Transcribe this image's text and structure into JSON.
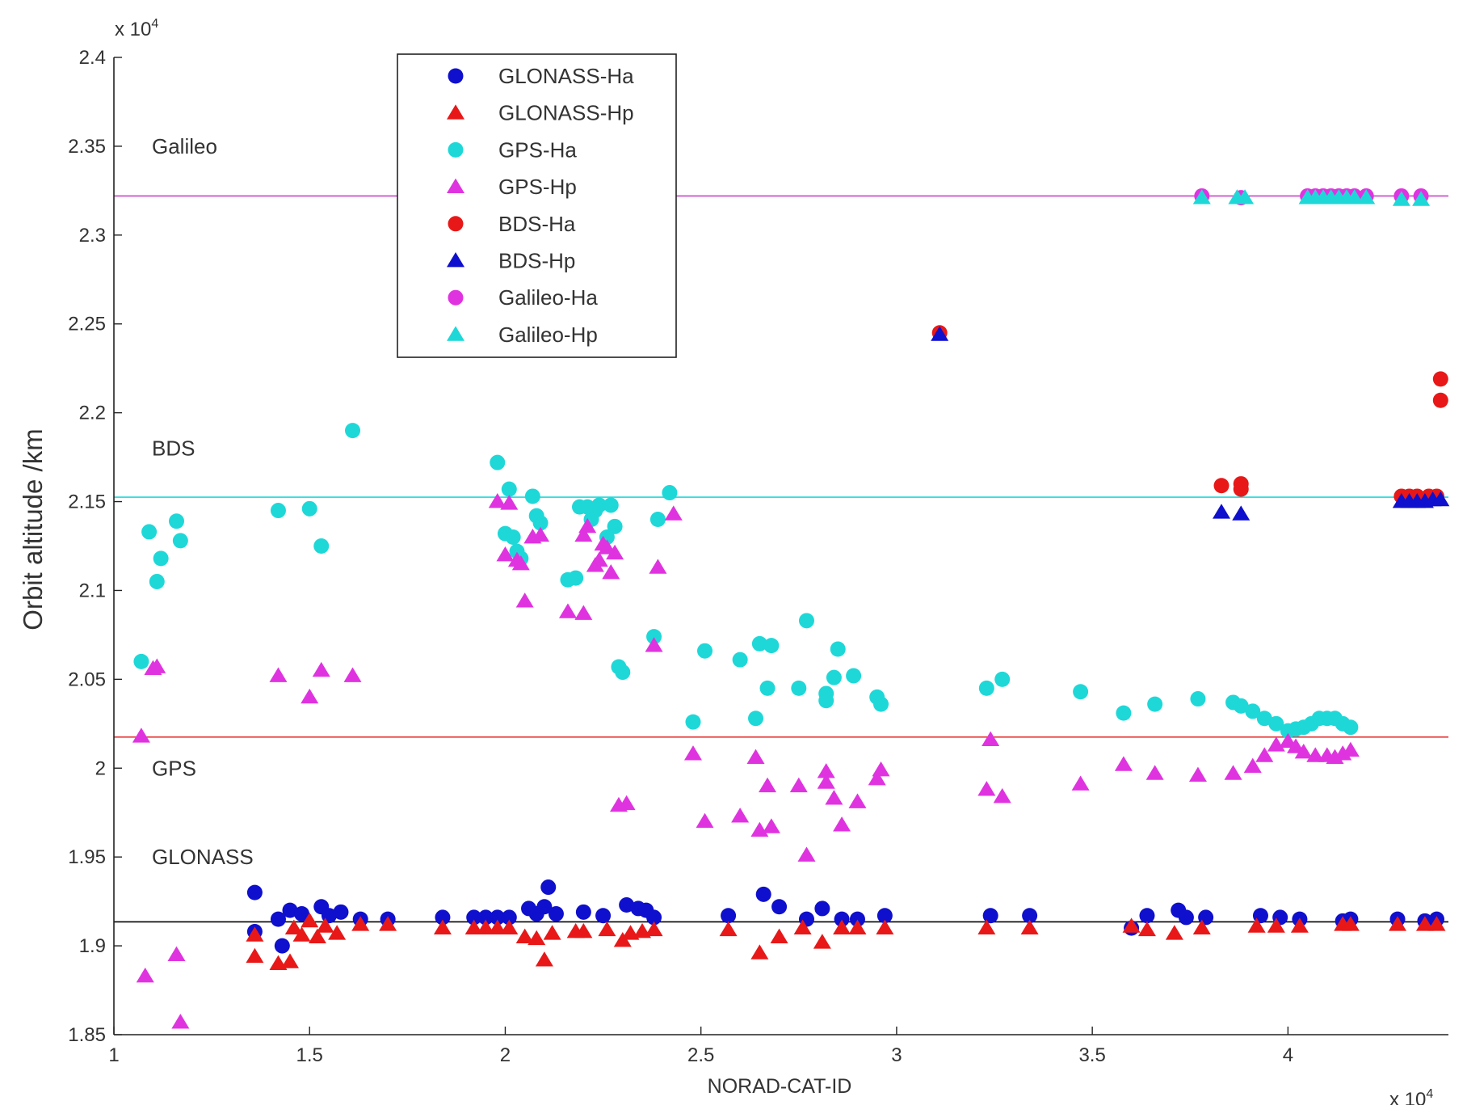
{
  "chart_data": {
    "type": "scatter",
    "title": "",
    "xlabel": "NORAD-CAT-ID",
    "ylabel": "Orbit altitude /km",
    "x_multiplier_label": "x 10",
    "x_multiplier_exp": "4",
    "y_multiplier_label": "x 10",
    "y_multiplier_exp": "4",
    "xlim": [
      1,
      4.41
    ],
    "ylim": [
      1.85,
      2.4
    ],
    "xticks": [
      1,
      1.5,
      2,
      2.5,
      3,
      3.5,
      4
    ],
    "xtick_labels": [
      "1",
      "1.5",
      "2",
      "2.5",
      "3",
      "3.5",
      "4"
    ],
    "yticks": [
      1.85,
      1.9,
      1.95,
      2.0,
      2.05,
      2.1,
      2.15,
      2.2,
      2.25,
      2.3,
      2.35,
      2.4
    ],
    "ytick_labels": [
      "1.85",
      "1.9",
      "1.95",
      "2",
      "2.05",
      "2.1",
      "2.15",
      "2.2",
      "2.25",
      "2.3",
      "2.35",
      "2.4"
    ],
    "grid": false,
    "legend_position": "top-center",
    "reference_lines": [
      {
        "name": "Galileo",
        "y": 2.322,
        "color": "#c845c8"
      },
      {
        "name": "BDS",
        "y": 2.1525,
        "color": "#1ed8d8"
      },
      {
        "name": "GPS",
        "y": 2.0175,
        "color": "#e83a3a"
      },
      {
        "name": "GLONASS",
        "y": 1.9135,
        "color": "#000000"
      }
    ],
    "series": [
      {
        "name": "GLONASS-Ha",
        "marker": "circle",
        "color": "#0f0fce",
        "points": [
          [
            1.36,
            1.93
          ],
          [
            1.36,
            1.908
          ],
          [
            1.42,
            1.915
          ],
          [
            1.43,
            1.9
          ],
          [
            1.45,
            1.92
          ],
          [
            1.48,
            1.918
          ],
          [
            1.53,
            1.922
          ],
          [
            1.55,
            1.917
          ],
          [
            1.58,
            1.919
          ],
          [
            1.63,
            1.915
          ],
          [
            1.7,
            1.915
          ],
          [
            1.84,
            1.916
          ],
          [
            1.92,
            1.916
          ],
          [
            1.95,
            1.916
          ],
          [
            1.98,
            1.916
          ],
          [
            2.01,
            1.916
          ],
          [
            2.06,
            1.921
          ],
          [
            2.08,
            1.918
          ],
          [
            2.1,
            1.922
          ],
          [
            2.11,
            1.933
          ],
          [
            2.13,
            1.918
          ],
          [
            2.2,
            1.919
          ],
          [
            2.25,
            1.917
          ],
          [
            2.31,
            1.923
          ],
          [
            2.34,
            1.921
          ],
          [
            2.36,
            1.92
          ],
          [
            2.38,
            1.916
          ],
          [
            2.57,
            1.917
          ],
          [
            2.66,
            1.929
          ],
          [
            2.7,
            1.922
          ],
          [
            2.77,
            1.915
          ],
          [
            2.81,
            1.921
          ],
          [
            2.86,
            1.915
          ],
          [
            2.9,
            1.915
          ],
          [
            2.97,
            1.917
          ],
          [
            3.24,
            1.917
          ],
          [
            3.34,
            1.917
          ],
          [
            3.6,
            1.91
          ],
          [
            3.64,
            1.917
          ],
          [
            3.72,
            1.92
          ],
          [
            3.74,
            1.916
          ],
          [
            3.79,
            1.916
          ],
          [
            3.93,
            1.917
          ],
          [
            3.98,
            1.916
          ],
          [
            4.03,
            1.915
          ],
          [
            4.14,
            1.914
          ],
          [
            4.16,
            1.915
          ],
          [
            4.28,
            1.915
          ],
          [
            4.35,
            1.914
          ],
          [
            4.38,
            1.915
          ]
        ]
      },
      {
        "name": "GLONASS-Hp",
        "marker": "triangle",
        "color": "#e81818",
        "points": [
          [
            1.36,
            1.894
          ],
          [
            1.36,
            1.906
          ],
          [
            1.42,
            1.89
          ],
          [
            1.45,
            1.891
          ],
          [
            1.46,
            1.91
          ],
          [
            1.48,
            1.906
          ],
          [
            1.5,
            1.914
          ],
          [
            1.52,
            1.905
          ],
          [
            1.54,
            1.911
          ],
          [
            1.57,
            1.907
          ],
          [
            1.63,
            1.912
          ],
          [
            1.7,
            1.912
          ],
          [
            1.84,
            1.91
          ],
          [
            1.92,
            1.91
          ],
          [
            1.95,
            1.91
          ],
          [
            1.98,
            1.91
          ],
          [
            2.01,
            1.91
          ],
          [
            2.05,
            1.905
          ],
          [
            2.08,
            1.904
          ],
          [
            2.1,
            1.892
          ],
          [
            2.12,
            1.907
          ],
          [
            2.18,
            1.908
          ],
          [
            2.2,
            1.908
          ],
          [
            2.26,
            1.909
          ],
          [
            2.3,
            1.903
          ],
          [
            2.32,
            1.907
          ],
          [
            2.35,
            1.908
          ],
          [
            2.38,
            1.909
          ],
          [
            2.57,
            1.909
          ],
          [
            2.65,
            1.896
          ],
          [
            2.7,
            1.905
          ],
          [
            2.76,
            1.91
          ],
          [
            2.81,
            1.902
          ],
          [
            2.86,
            1.91
          ],
          [
            2.9,
            1.91
          ],
          [
            2.97,
            1.91
          ],
          [
            3.23,
            1.91
          ],
          [
            3.34,
            1.91
          ],
          [
            3.6,
            1.911
          ],
          [
            3.64,
            1.909
          ],
          [
            3.71,
            1.907
          ],
          [
            3.78,
            1.91
          ],
          [
            3.92,
            1.911
          ],
          [
            3.97,
            1.911
          ],
          [
            4.03,
            1.911
          ],
          [
            4.14,
            1.912
          ],
          [
            4.16,
            1.912
          ],
          [
            4.28,
            1.912
          ],
          [
            4.35,
            1.912
          ],
          [
            4.38,
            1.912
          ]
        ]
      },
      {
        "name": "GPS-Ha",
        "marker": "circle",
        "color": "#1ed8d8",
        "points": [
          [
            1.07,
            2.06
          ],
          [
            1.09,
            2.133
          ],
          [
            1.11,
            2.105
          ],
          [
            1.12,
            2.118
          ],
          [
            1.16,
            2.139
          ],
          [
            1.17,
            2.128
          ],
          [
            1.42,
            2.145
          ],
          [
            1.5,
            2.146
          ],
          [
            1.53,
            2.125
          ],
          [
            1.61,
            2.19
          ],
          [
            1.98,
            2.172
          ],
          [
            2.0,
            2.132
          ],
          [
            2.01,
            2.157
          ],
          [
            2.02,
            2.13
          ],
          [
            2.03,
            2.122
          ],
          [
            2.04,
            2.118
          ],
          [
            2.07,
            2.153
          ],
          [
            2.08,
            2.142
          ],
          [
            2.09,
            2.138
          ],
          [
            2.16,
            2.106
          ],
          [
            2.18,
            2.107
          ],
          [
            2.19,
            2.147
          ],
          [
            2.21,
            2.147
          ],
          [
            2.22,
            2.14
          ],
          [
            2.23,
            2.145
          ],
          [
            2.24,
            2.148
          ],
          [
            2.26,
            2.13
          ],
          [
            2.27,
            2.148
          ],
          [
            2.28,
            2.136
          ],
          [
            2.29,
            2.057
          ],
          [
            2.3,
            2.054
          ],
          [
            2.38,
            2.074
          ],
          [
            2.39,
            2.14
          ],
          [
            2.42,
            2.155
          ],
          [
            2.48,
            2.026
          ],
          [
            2.51,
            2.066
          ],
          [
            2.6,
            2.061
          ],
          [
            2.64,
            2.028
          ],
          [
            2.65,
            2.07
          ],
          [
            2.67,
            2.045
          ],
          [
            2.68,
            2.069
          ],
          [
            2.75,
            2.045
          ],
          [
            2.77,
            2.083
          ],
          [
            2.82,
            2.038
          ],
          [
            2.82,
            2.042
          ],
          [
            2.84,
            2.051
          ],
          [
            2.85,
            2.067
          ],
          [
            2.89,
            2.052
          ],
          [
            2.95,
            2.04
          ],
          [
            2.96,
            2.036
          ],
          [
            3.23,
            2.045
          ],
          [
            3.27,
            2.05
          ],
          [
            3.47,
            2.043
          ],
          [
            3.58,
            2.031
          ],
          [
            3.66,
            2.036
          ],
          [
            3.77,
            2.039
          ],
          [
            3.86,
            2.037
          ],
          [
            3.88,
            2.035
          ],
          [
            3.91,
            2.032
          ],
          [
            3.94,
            2.028
          ],
          [
            3.97,
            2.025
          ],
          [
            4.0,
            2.021
          ],
          [
            4.02,
            2.022
          ],
          [
            4.04,
            2.023
          ],
          [
            4.06,
            2.025
          ],
          [
            4.08,
            2.028
          ],
          [
            4.1,
            2.028
          ],
          [
            4.12,
            2.028
          ],
          [
            4.14,
            2.025
          ],
          [
            4.16,
            2.023
          ]
        ]
      },
      {
        "name": "GPS-Hp",
        "marker": "triangle",
        "color": "#e033e0",
        "points": [
          [
            1.07,
            2.018
          ],
          [
            1.1,
            2.056
          ],
          [
            1.11,
            2.057
          ],
          [
            1.08,
            1.883
          ],
          [
            1.16,
            1.895
          ],
          [
            1.17,
            1.857
          ],
          [
            1.42,
            2.052
          ],
          [
            1.5,
            2.04
          ],
          [
            1.53,
            2.055
          ],
          [
            1.61,
            2.052
          ],
          [
            1.98,
            2.15
          ],
          [
            2.0,
            2.12
          ],
          [
            2.01,
            2.149
          ],
          [
            2.03,
            2.117
          ],
          [
            2.04,
            2.115
          ],
          [
            2.05,
            2.094
          ],
          [
            2.07,
            2.13
          ],
          [
            2.09,
            2.131
          ],
          [
            2.16,
            2.088
          ],
          [
            2.2,
            2.087
          ],
          [
            2.2,
            2.131
          ],
          [
            2.21,
            2.136
          ],
          [
            2.23,
            2.114
          ],
          [
            2.24,
            2.117
          ],
          [
            2.25,
            2.126
          ],
          [
            2.26,
            2.124
          ],
          [
            2.27,
            2.11
          ],
          [
            2.28,
            2.121
          ],
          [
            2.29,
            1.979
          ],
          [
            2.31,
            1.98
          ],
          [
            2.38,
            2.069
          ],
          [
            2.39,
            2.113
          ],
          [
            2.43,
            2.143
          ],
          [
            2.48,
            2.008
          ],
          [
            2.51,
            1.97
          ],
          [
            2.6,
            1.973
          ],
          [
            2.64,
            2.006
          ],
          [
            2.65,
            1.965
          ],
          [
            2.67,
            1.99
          ],
          [
            2.68,
            1.967
          ],
          [
            2.75,
            1.99
          ],
          [
            2.77,
            1.951
          ],
          [
            2.82,
            1.992
          ],
          [
            2.82,
            1.998
          ],
          [
            2.84,
            1.983
          ],
          [
            2.86,
            1.968
          ],
          [
            2.9,
            1.981
          ],
          [
            2.95,
            1.994
          ],
          [
            2.96,
            1.999
          ],
          [
            3.23,
            1.988
          ],
          [
            3.24,
            2.016
          ],
          [
            3.27,
            1.984
          ],
          [
            3.47,
            1.991
          ],
          [
            3.58,
            2.002
          ],
          [
            3.66,
            1.997
          ],
          [
            3.77,
            1.996
          ],
          [
            3.86,
            1.997
          ],
          [
            3.91,
            2.001
          ],
          [
            3.94,
            2.007
          ],
          [
            3.97,
            2.013
          ],
          [
            4.0,
            2.015
          ],
          [
            4.02,
            2.012
          ],
          [
            4.04,
            2.009
          ],
          [
            4.07,
            2.007
          ],
          [
            4.1,
            2.007
          ],
          [
            4.12,
            2.006
          ],
          [
            4.14,
            2.008
          ],
          [
            4.16,
            2.01
          ]
        ]
      },
      {
        "name": "BDS-Ha",
        "marker": "circle",
        "color": "#e81818",
        "points": [
          [
            3.11,
            2.245
          ],
          [
            3.83,
            2.159
          ],
          [
            3.88,
            2.16
          ],
          [
            3.88,
            2.157
          ],
          [
            4.29,
            2.153
          ],
          [
            4.31,
            2.153
          ],
          [
            4.33,
            2.153
          ],
          [
            4.36,
            2.153
          ],
          [
            4.38,
            2.153
          ],
          [
            4.39,
            2.207
          ],
          [
            4.39,
            2.219
          ]
        ]
      },
      {
        "name": "BDS-Hp",
        "marker": "triangle",
        "color": "#0f0fce",
        "points": [
          [
            3.11,
            2.244
          ],
          [
            3.83,
            2.144
          ],
          [
            3.88,
            2.143
          ],
          [
            4.29,
            2.15
          ],
          [
            4.31,
            2.15
          ],
          [
            4.33,
            2.15
          ],
          [
            4.35,
            2.15
          ],
          [
            4.37,
            2.151
          ],
          [
            4.39,
            2.151
          ]
        ]
      },
      {
        "name": "Galileo-Ha",
        "marker": "circle",
        "color": "#e033e0",
        "points": [
          [
            3.78,
            2.322
          ],
          [
            3.88,
            2.321
          ],
          [
            4.05,
            2.322
          ],
          [
            4.07,
            2.322
          ],
          [
            4.09,
            2.322
          ],
          [
            4.11,
            2.322
          ],
          [
            4.13,
            2.322
          ],
          [
            4.15,
            2.322
          ],
          [
            4.17,
            2.322
          ],
          [
            4.2,
            2.322
          ],
          [
            4.29,
            2.322
          ],
          [
            4.34,
            2.322
          ]
        ]
      },
      {
        "name": "Galileo-Hp",
        "marker": "triangle",
        "color": "#1ed8d8",
        "points": [
          [
            3.78,
            2.321
          ],
          [
            3.87,
            2.321
          ],
          [
            3.89,
            2.321
          ],
          [
            4.05,
            2.321
          ],
          [
            4.07,
            2.321
          ],
          [
            4.09,
            2.321
          ],
          [
            4.11,
            2.321
          ],
          [
            4.13,
            2.321
          ],
          [
            4.15,
            2.321
          ],
          [
            4.17,
            2.321
          ],
          [
            4.2,
            2.321
          ],
          [
            4.29,
            2.32
          ],
          [
            4.34,
            2.32
          ]
        ]
      }
    ]
  }
}
